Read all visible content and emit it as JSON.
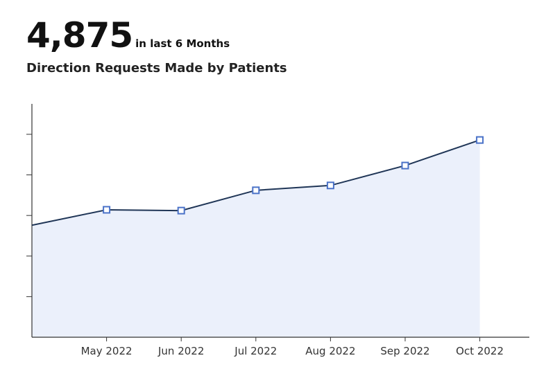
{
  "headline": {
    "value": "4,875",
    "caption": "in last 6 Months"
  },
  "chart_data": {
    "type": "area",
    "title": "Direction Requests Made by Patients",
    "categories": [
      null,
      "May 2022",
      "Jun 2022",
      "Jul 2022",
      "Aug 2022",
      "Sep 2022",
      "Oct 2022"
    ],
    "values": [
      2.76,
      3.14,
      3.12,
      3.62,
      3.74,
      4.23,
      4.86
    ],
    "ylim": [
      0,
      5.75
    ],
    "yticks": [
      1,
      2,
      3,
      4,
      5
    ],
    "line_color": "#1f3556",
    "fill_color": "#ebf0fb",
    "marker_color": "#4a72c8"
  }
}
